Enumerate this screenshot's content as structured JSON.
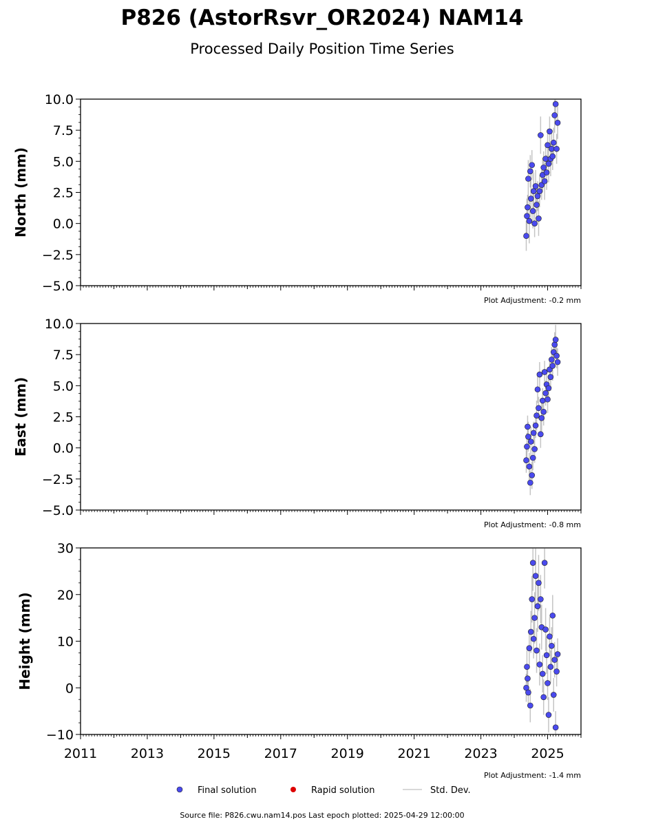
{
  "title": "P826 (AstorRsvr_OR2024) NAM14",
  "subtitle": "Processed Daily Position Time Series",
  "legend": {
    "final_label": "Final solution",
    "rapid_label": "Rapid solution",
    "std_label": "Std. Dev.",
    "final_color": "#4a4aee",
    "rapid_color": "#dd0000",
    "std_color": "#cccccc"
  },
  "footer": "Source file: P826.cwu.nam14.pos  Last epoch plotted: 2025-04-29 12:00:00",
  "chart_data": [
    {
      "type": "scatter",
      "ylabel": "North (mm)",
      "ylim": [
        -5,
        10
      ],
      "yticks": [
        -5,
        -2.5,
        0,
        2.5,
        5,
        7.5,
        10
      ],
      "ytick_labels": [
        "−5.0",
        "−2.5",
        "0.0",
        "2.5",
        "5.0",
        "7.5",
        "10.0"
      ],
      "xlim": [
        2011,
        2026
      ],
      "adjustment": "Plot Adjustment: -0.2 mm",
      "series": [
        {
          "x": [
            2024.36,
            2024.38,
            2024.4,
            2024.42,
            2024.45,
            2024.48,
            2024.5,
            2024.53,
            2024.56,
            2024.58,
            2024.61,
            2024.64,
            2024.67,
            2024.7,
            2024.73,
            2024.76,
            2024.79,
            2024.82,
            2024.85,
            2024.88,
            2024.91,
            2024.94,
            2024.97,
            2025.0,
            2025.03,
            2025.06,
            2025.09,
            2025.12,
            2025.15,
            2025.18,
            2025.21,
            2025.24,
            2025.27,
            2025.3
          ],
          "y": [
            -1.0,
            0.6,
            1.3,
            3.6,
            0.2,
            4.2,
            2.0,
            4.7,
            1.0,
            2.6,
            0.0,
            3.0,
            1.5,
            2.2,
            0.4,
            2.6,
            7.1,
            3.1,
            3.9,
            4.5,
            3.4,
            5.2,
            4.1,
            6.3,
            4.8,
            7.4,
            5.2,
            6.0,
            5.4,
            6.5,
            8.7,
            9.6,
            6.0,
            8.1
          ],
          "err": [
            1.2,
            1.4,
            1.0,
            1.5,
            1.8,
            1.3,
            1.6,
            1.2,
            1.4,
            1.5,
            1.1,
            1.3,
            1.6,
            1.2,
            1.4,
            1.3,
            1.5,
            1.2,
            1.4,
            1.3,
            1.5,
            1.2,
            1.4,
            1.3,
            1.5,
            1.2,
            1.4,
            1.3,
            1.1,
            1.2,
            1.4,
            1.3,
            1.2,
            1.3
          ]
        }
      ]
    },
    {
      "type": "scatter",
      "ylabel": "East (mm)",
      "ylim": [
        -5,
        10
      ],
      "yticks": [
        -5,
        -2.5,
        0,
        2.5,
        5,
        7.5,
        10
      ],
      "ytick_labels": [
        "−5.0",
        "−2.5",
        "0.0",
        "2.5",
        "5.0",
        "7.5",
        "10.0"
      ],
      "xlim": [
        2011,
        2026
      ],
      "adjustment": "Plot Adjustment: -0.8 mm",
      "series": [
        {
          "x": [
            2024.36,
            2024.38,
            2024.4,
            2024.42,
            2024.45,
            2024.48,
            2024.5,
            2024.53,
            2024.56,
            2024.58,
            2024.61,
            2024.64,
            2024.67,
            2024.7,
            2024.73,
            2024.76,
            2024.79,
            2024.82,
            2024.85,
            2024.88,
            2024.91,
            2024.94,
            2024.97,
            2025.0,
            2025.03,
            2025.06,
            2025.09,
            2025.12,
            2025.15,
            2025.18,
            2025.21,
            2025.24,
            2025.27,
            2025.3
          ],
          "y": [
            -1.0,
            0.1,
            1.7,
            0.9,
            -1.5,
            -2.8,
            0.5,
            -2.2,
            -0.8,
            1.2,
            -0.1,
            1.8,
            2.6,
            4.7,
            3.2,
            5.9,
            1.1,
            2.4,
            3.8,
            2.9,
            6.1,
            4.4,
            5.1,
            3.9,
            4.8,
            6.3,
            5.7,
            7.1,
            6.6,
            7.7,
            8.3,
            8.7,
            7.4,
            6.9
          ],
          "err": [
            1.0,
            1.1,
            0.9,
            1.2,
            1.1,
            1.0,
            1.2,
            1.1,
            1.0,
            0.9,
            1.1,
            1.0,
            1.2,
            1.1,
            0.9,
            1.0,
            1.1,
            1.2,
            1.0,
            1.1,
            0.9,
            1.0,
            1.2,
            1.1,
            1.0,
            0.9,
            1.1,
            1.0,
            1.2,
            1.1,
            1.0,
            1.2,
            1.0,
            1.1
          ]
        }
      ]
    },
    {
      "type": "scatter",
      "ylabel": "Height (mm)",
      "ylim": [
        -10,
        30
      ],
      "yticks": [
        -10,
        0,
        10,
        20,
        30
      ],
      "ytick_labels": [
        "−10",
        "0",
        "10",
        "20",
        "30"
      ],
      "xlim": [
        2011,
        2026
      ],
      "xticks": [
        2011,
        2013,
        2015,
        2017,
        2019,
        2021,
        2023,
        2025
      ],
      "xtick_labels": [
        "2011",
        "2013",
        "2015",
        "2017",
        "2019",
        "2021",
        "2023",
        "2025"
      ],
      "adjustment": "Plot Adjustment: -1.4 mm",
      "series": [
        {
          "x": [
            2024.36,
            2024.38,
            2024.4,
            2024.42,
            2024.45,
            2024.48,
            2024.5,
            2024.53,
            2024.56,
            2024.58,
            2024.61,
            2024.64,
            2024.67,
            2024.7,
            2024.73,
            2024.76,
            2024.79,
            2024.82,
            2024.85,
            2024.88,
            2024.91,
            2024.94,
            2024.97,
            2025.0,
            2025.03,
            2025.06,
            2025.09,
            2025.12,
            2025.15,
            2025.18,
            2025.21,
            2025.24,
            2025.27,
            2025.3
          ],
          "y": [
            0.0,
            4.5,
            2.0,
            -1.0,
            8.5,
            -3.8,
            12.0,
            19.0,
            26.8,
            10.5,
            15.0,
            24.0,
            8.0,
            17.5,
            22.5,
            5.0,
            19.0,
            13.0,
            3.0,
            -2.0,
            26.8,
            12.5,
            7.0,
            1.0,
            -5.8,
            11.0,
            4.5,
            9.0,
            15.5,
            -1.5,
            6.0,
            -8.5,
            3.5,
            7.2
          ],
          "err": [
            3.0,
            3.5,
            2.8,
            3.2,
            4.0,
            3.6,
            4.5,
            5.0,
            6.0,
            4.2,
            5.5,
            6.5,
            4.8,
            5.5,
            6.0,
            4.5,
            5.2,
            4.8,
            4.0,
            3.8,
            5.5,
            4.6,
            4.0,
            3.6,
            3.8,
            4.2,
            3.5,
            4.0,
            4.4,
            3.6,
            3.8,
            3.5,
            3.2,
            3.4
          ]
        }
      ]
    }
  ]
}
